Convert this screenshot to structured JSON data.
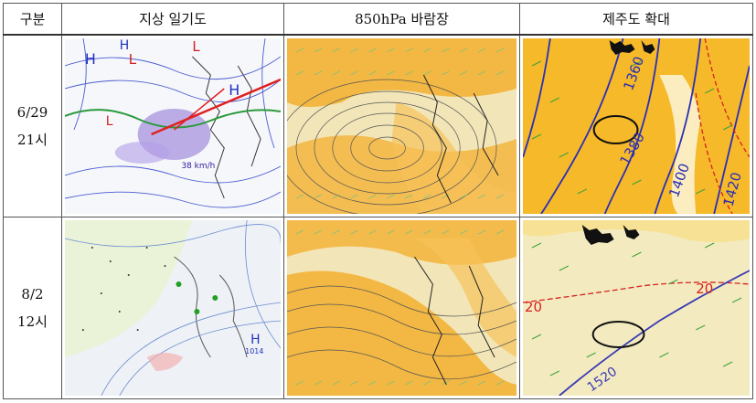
{
  "headers": [
    "구분",
    "지상 일기도",
    "850hPa 바람장",
    "제주도 확대"
  ],
  "rows": [
    {
      "date": "6/29",
      "time": "21시",
      "surface_labels": [
        "H",
        "H",
        "L",
        "L",
        "H",
        "L",
        "38 km/h"
      ],
      "zoom_contours": [
        "1360",
        "1380",
        "1400",
        "1420"
      ]
    },
    {
      "date": "8/2",
      "time": "12시",
      "surface_labels": [
        "H",
        "1014"
      ],
      "zoom_contours": [
        "20",
        "20",
        "1520"
      ]
    }
  ]
}
